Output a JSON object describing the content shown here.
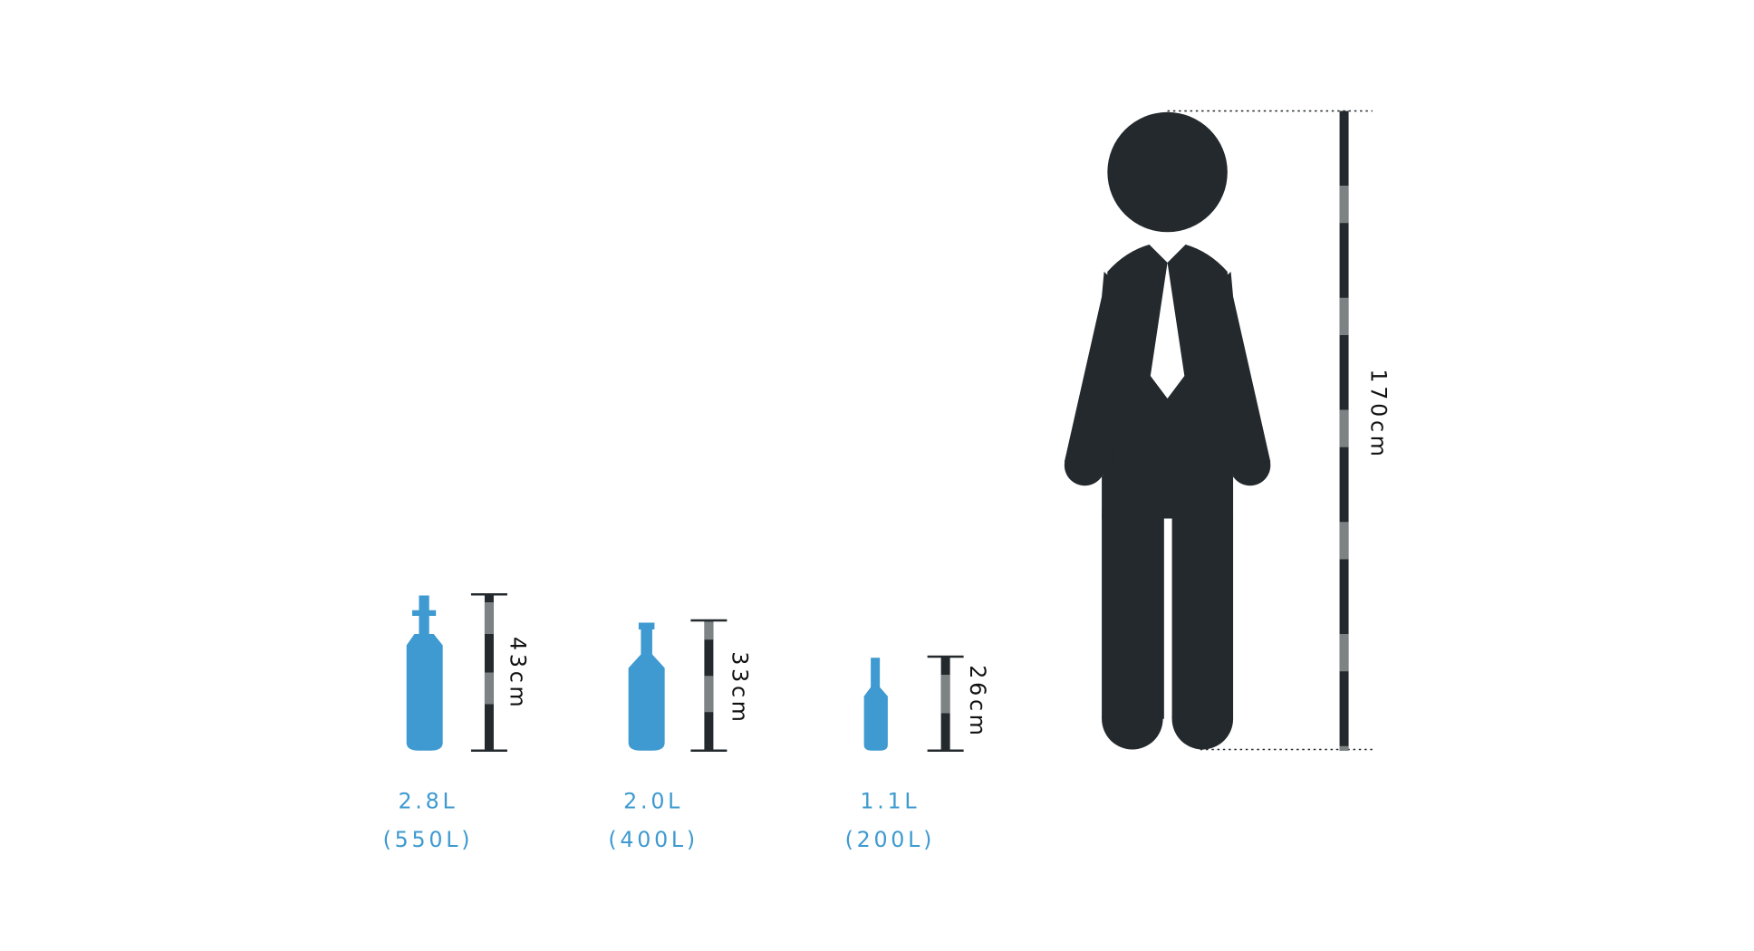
{
  "items": [
    {
      "height": "43cm",
      "volume": "2.8L",
      "capacity": "(550L)"
    },
    {
      "height": "33cm",
      "volume": "2.0L",
      "capacity": "(400L)"
    },
    {
      "height": "26cm",
      "volume": "1.1L",
      "capacity": "(200L)"
    }
  ],
  "person": {
    "height": "170cm"
  }
}
